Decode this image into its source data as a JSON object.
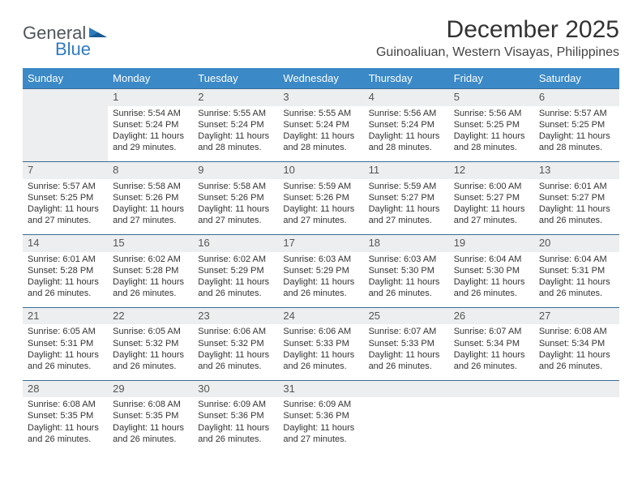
{
  "logo": {
    "text1": "General",
    "text2": "Blue"
  },
  "title": "December 2025",
  "location": "Guinoaliuan, Western Visayas, Philippines",
  "colors": {
    "header_bg": "#3b89c7",
    "header_text": "#ffffff",
    "row_separator": "#3b6d97",
    "daynum_bg": "#eceeef",
    "logo_gray": "#50575b",
    "logo_blue": "#2f7bbf",
    "body_text": "#333333"
  },
  "typography": {
    "title_fontsize": 30,
    "location_fontsize": 16,
    "weekday_fontsize": 13,
    "daynum_fontsize": 13,
    "cell_fontsize": 11
  },
  "weekdays": [
    "Sunday",
    "Monday",
    "Tuesday",
    "Wednesday",
    "Thursday",
    "Friday",
    "Saturday"
  ],
  "weeks": [
    [
      null,
      {
        "n": "1",
        "sr": "Sunrise: 5:54 AM",
        "ss": "Sunset: 5:24 PM",
        "d1": "Daylight: 11 hours",
        "d2": "and 29 minutes."
      },
      {
        "n": "2",
        "sr": "Sunrise: 5:55 AM",
        "ss": "Sunset: 5:24 PM",
        "d1": "Daylight: 11 hours",
        "d2": "and 28 minutes."
      },
      {
        "n": "3",
        "sr": "Sunrise: 5:55 AM",
        "ss": "Sunset: 5:24 PM",
        "d1": "Daylight: 11 hours",
        "d2": "and 28 minutes."
      },
      {
        "n": "4",
        "sr": "Sunrise: 5:56 AM",
        "ss": "Sunset: 5:24 PM",
        "d1": "Daylight: 11 hours",
        "d2": "and 28 minutes."
      },
      {
        "n": "5",
        "sr": "Sunrise: 5:56 AM",
        "ss": "Sunset: 5:25 PM",
        "d1": "Daylight: 11 hours",
        "d2": "and 28 minutes."
      },
      {
        "n": "6",
        "sr": "Sunrise: 5:57 AM",
        "ss": "Sunset: 5:25 PM",
        "d1": "Daylight: 11 hours",
        "d2": "and 28 minutes."
      }
    ],
    [
      {
        "n": "7",
        "sr": "Sunrise: 5:57 AM",
        "ss": "Sunset: 5:25 PM",
        "d1": "Daylight: 11 hours",
        "d2": "and 27 minutes."
      },
      {
        "n": "8",
        "sr": "Sunrise: 5:58 AM",
        "ss": "Sunset: 5:26 PM",
        "d1": "Daylight: 11 hours",
        "d2": "and 27 minutes."
      },
      {
        "n": "9",
        "sr": "Sunrise: 5:58 AM",
        "ss": "Sunset: 5:26 PM",
        "d1": "Daylight: 11 hours",
        "d2": "and 27 minutes."
      },
      {
        "n": "10",
        "sr": "Sunrise: 5:59 AM",
        "ss": "Sunset: 5:26 PM",
        "d1": "Daylight: 11 hours",
        "d2": "and 27 minutes."
      },
      {
        "n": "11",
        "sr": "Sunrise: 5:59 AM",
        "ss": "Sunset: 5:27 PM",
        "d1": "Daylight: 11 hours",
        "d2": "and 27 minutes."
      },
      {
        "n": "12",
        "sr": "Sunrise: 6:00 AM",
        "ss": "Sunset: 5:27 PM",
        "d1": "Daylight: 11 hours",
        "d2": "and 27 minutes."
      },
      {
        "n": "13",
        "sr": "Sunrise: 6:01 AM",
        "ss": "Sunset: 5:27 PM",
        "d1": "Daylight: 11 hours",
        "d2": "and 26 minutes."
      }
    ],
    [
      {
        "n": "14",
        "sr": "Sunrise: 6:01 AM",
        "ss": "Sunset: 5:28 PM",
        "d1": "Daylight: 11 hours",
        "d2": "and 26 minutes."
      },
      {
        "n": "15",
        "sr": "Sunrise: 6:02 AM",
        "ss": "Sunset: 5:28 PM",
        "d1": "Daylight: 11 hours",
        "d2": "and 26 minutes."
      },
      {
        "n": "16",
        "sr": "Sunrise: 6:02 AM",
        "ss": "Sunset: 5:29 PM",
        "d1": "Daylight: 11 hours",
        "d2": "and 26 minutes."
      },
      {
        "n": "17",
        "sr": "Sunrise: 6:03 AM",
        "ss": "Sunset: 5:29 PM",
        "d1": "Daylight: 11 hours",
        "d2": "and 26 minutes."
      },
      {
        "n": "18",
        "sr": "Sunrise: 6:03 AM",
        "ss": "Sunset: 5:30 PM",
        "d1": "Daylight: 11 hours",
        "d2": "and 26 minutes."
      },
      {
        "n": "19",
        "sr": "Sunrise: 6:04 AM",
        "ss": "Sunset: 5:30 PM",
        "d1": "Daylight: 11 hours",
        "d2": "and 26 minutes."
      },
      {
        "n": "20",
        "sr": "Sunrise: 6:04 AM",
        "ss": "Sunset: 5:31 PM",
        "d1": "Daylight: 11 hours",
        "d2": "and 26 minutes."
      }
    ],
    [
      {
        "n": "21",
        "sr": "Sunrise: 6:05 AM",
        "ss": "Sunset: 5:31 PM",
        "d1": "Daylight: 11 hours",
        "d2": "and 26 minutes."
      },
      {
        "n": "22",
        "sr": "Sunrise: 6:05 AM",
        "ss": "Sunset: 5:32 PM",
        "d1": "Daylight: 11 hours",
        "d2": "and 26 minutes."
      },
      {
        "n": "23",
        "sr": "Sunrise: 6:06 AM",
        "ss": "Sunset: 5:32 PM",
        "d1": "Daylight: 11 hours",
        "d2": "and 26 minutes."
      },
      {
        "n": "24",
        "sr": "Sunrise: 6:06 AM",
        "ss": "Sunset: 5:33 PM",
        "d1": "Daylight: 11 hours",
        "d2": "and 26 minutes."
      },
      {
        "n": "25",
        "sr": "Sunrise: 6:07 AM",
        "ss": "Sunset: 5:33 PM",
        "d1": "Daylight: 11 hours",
        "d2": "and 26 minutes."
      },
      {
        "n": "26",
        "sr": "Sunrise: 6:07 AM",
        "ss": "Sunset: 5:34 PM",
        "d1": "Daylight: 11 hours",
        "d2": "and 26 minutes."
      },
      {
        "n": "27",
        "sr": "Sunrise: 6:08 AM",
        "ss": "Sunset: 5:34 PM",
        "d1": "Daylight: 11 hours",
        "d2": "and 26 minutes."
      }
    ],
    [
      {
        "n": "28",
        "sr": "Sunrise: 6:08 AM",
        "ss": "Sunset: 5:35 PM",
        "d1": "Daylight: 11 hours",
        "d2": "and 26 minutes."
      },
      {
        "n": "29",
        "sr": "Sunrise: 6:08 AM",
        "ss": "Sunset: 5:35 PM",
        "d1": "Daylight: 11 hours",
        "d2": "and 26 minutes."
      },
      {
        "n": "30",
        "sr": "Sunrise: 6:09 AM",
        "ss": "Sunset: 5:36 PM",
        "d1": "Daylight: 11 hours",
        "d2": "and 26 minutes."
      },
      {
        "n": "31",
        "sr": "Sunrise: 6:09 AM",
        "ss": "Sunset: 5:36 PM",
        "d1": "Daylight: 11 hours",
        "d2": "and 27 minutes."
      },
      null,
      null,
      null
    ]
  ]
}
